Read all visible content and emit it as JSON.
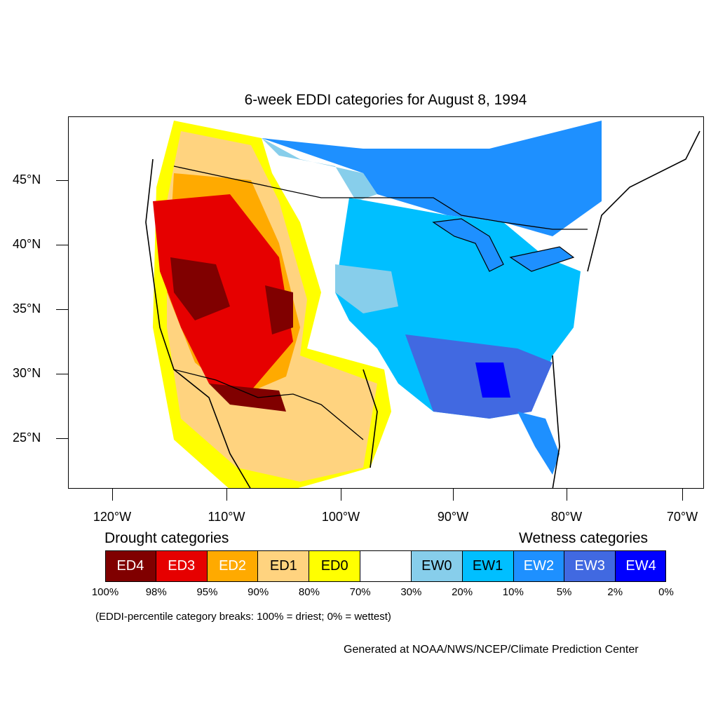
{
  "title": "6-week EDDI categories for August 8, 1994",
  "colors": {
    "ED4": "#800000",
    "ED3": "#e60000",
    "ED2": "#ffaa00",
    "ED1": "#ffd37f",
    "ED0": "#ffff00",
    "neutral": "#ffffff",
    "EW0": "#87ceeb",
    "EW1": "#00bfff",
    "EW2": "#1e90ff",
    "EW3": "#4169e1",
    "EW4": "#0000ff"
  },
  "axes": {
    "lat_labels": [
      "45°N",
      "40°N",
      "35°N",
      "30°N",
      "25°N"
    ],
    "lon_labels": [
      "120°W",
      "110°W",
      "100°W",
      "90°W",
      "80°W",
      "70°W"
    ]
  },
  "legend": {
    "drought_heading": "Drought categories",
    "wetness_heading": "Wetness categories",
    "categories": [
      {
        "label": "ED4",
        "color": "#800000",
        "text_color": "#ffffff"
      },
      {
        "label": "ED3",
        "color": "#e60000",
        "text_color": "#ffffff"
      },
      {
        "label": "ED2",
        "color": "#ffaa00",
        "text_color": "#ffffff"
      },
      {
        "label": "ED1",
        "color": "#ffd37f",
        "text_color": "#000000"
      },
      {
        "label": "ED0",
        "color": "#ffff00",
        "text_color": "#000000"
      },
      {
        "label": "",
        "color": "#ffffff",
        "text_color": "#000000"
      },
      {
        "label": "EW0",
        "color": "#87ceeb",
        "text_color": "#000000"
      },
      {
        "label": "EW1",
        "color": "#00bfff",
        "text_color": "#000000"
      },
      {
        "label": "EW2",
        "color": "#1e90ff",
        "text_color": "#ffffff"
      },
      {
        "label": "EW3",
        "color": "#4169e1",
        "text_color": "#ffffff"
      },
      {
        "label": "EW4",
        "color": "#0000ff",
        "text_color": "#ffffff"
      }
    ],
    "breaks": [
      "100%",
      "98%",
      "95%",
      "90%",
      "80%",
      "70%",
      "30%",
      "20%",
      "10%",
      "5%",
      "2%",
      "0%"
    ],
    "note": "(EDDI-percentile category breaks: 100% = driest; 0% = wettest)"
  },
  "credit": "Generated at NOAA/NWS/NCEP/Climate Prediction Center"
}
